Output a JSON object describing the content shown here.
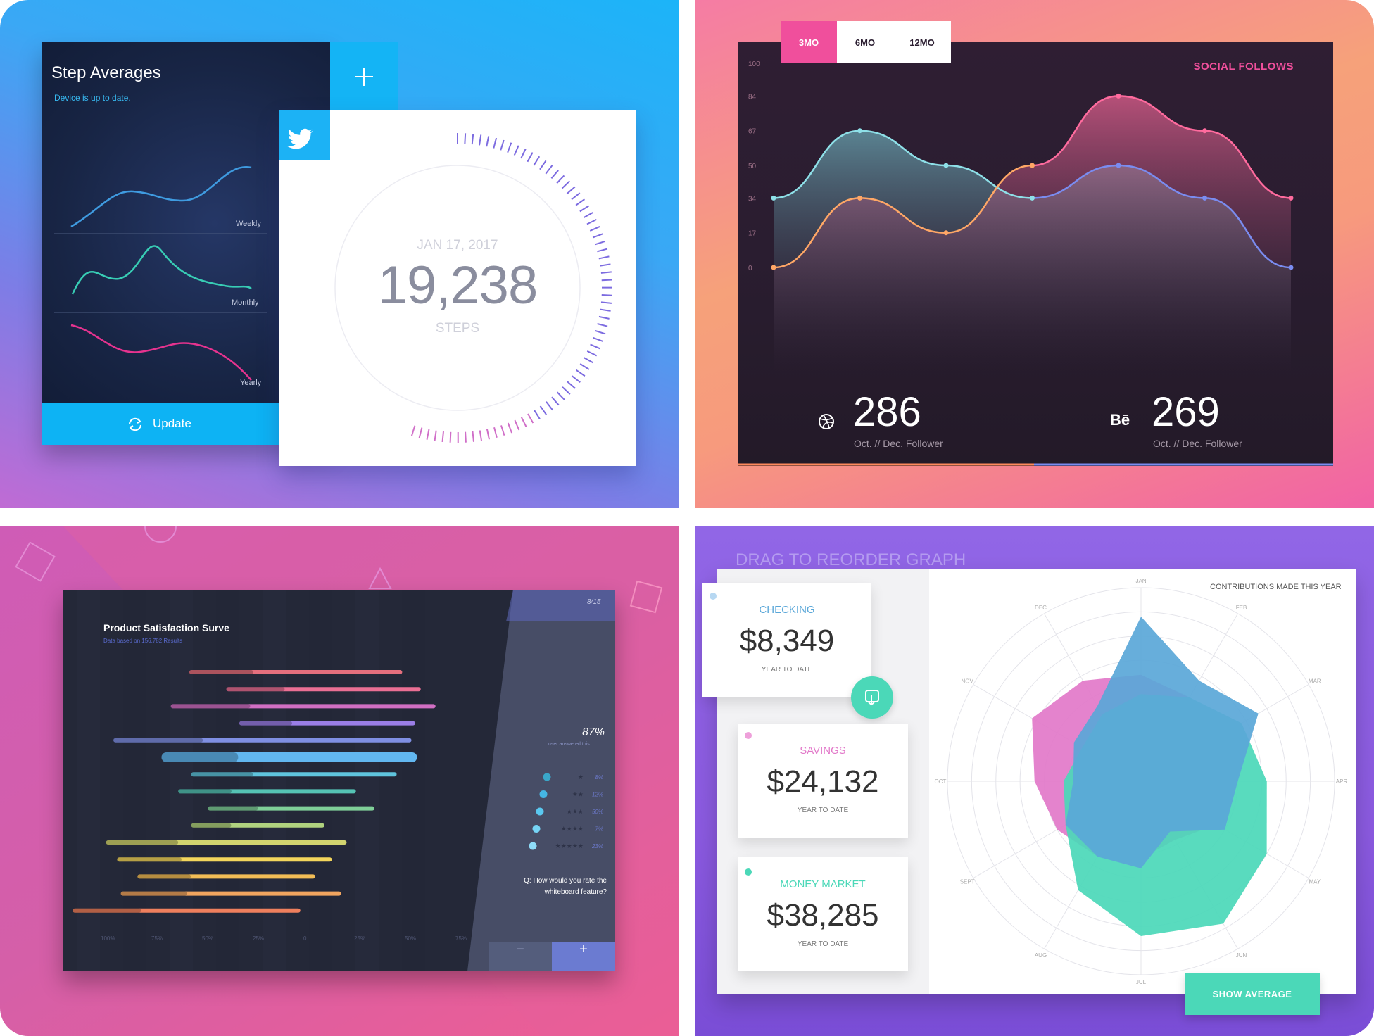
{
  "colors": {
    "blue": "#0db3f4",
    "pink": "#f04f9c",
    "teal": "#4bd8b8",
    "purple": "#8b5ae0"
  },
  "step_card": {
    "title": "Step Averages",
    "subtitle": "Device is up to date.",
    "add_icon": "plus-icon",
    "labels": [
      "Weekly",
      "Monthly",
      "Yearly"
    ],
    "update_label": "Update",
    "update_icon": "refresh-icon"
  },
  "steps_card": {
    "icon": "twitter-icon",
    "date": "JAN 17, 2017",
    "value": "19,238",
    "unit": "STEPS"
  },
  "social": {
    "tabs": [
      "3MO",
      "6MO",
      "12MO"
    ],
    "active_tab": "3MO",
    "title": "SOCIAL FOLLOWS",
    "stat1_icon": "dribbble-icon",
    "stat1_value": "286",
    "stat1_label": "Oct. // Dec. Follower",
    "stat2_icon": "behance-icon",
    "stat2_icon_text": "Bē",
    "stat2_value": "269",
    "stat2_label": "Oct. // Dec. Follower"
  },
  "survey": {
    "title": "Product Satisfaction Surve",
    "subtitle": "Data based on 156,782 Results",
    "page": "8/15",
    "percent": "87%",
    "percent_note": "user answered this",
    "ratings": [
      "8%",
      "12%",
      "50%",
      "7%",
      "23%"
    ],
    "question": "Q: How would you rate the whiteboard feature?",
    "minus": "−",
    "plus": "+"
  },
  "finance": {
    "heading": "DRAG TO REORDER GRAPH",
    "chart_title": "CONTRIBUTIONS MADE THIS YEAR",
    "cards": [
      {
        "label": "CHECKING",
        "value": "$8,349",
        "sub": "YEAR TO DATE",
        "color": "#5aa7d8"
      },
      {
        "label": "SAVINGS",
        "value": "$24,132",
        "sub": "YEAR TO DATE",
        "color": "#e278c9"
      },
      {
        "label": "MONEY MARKET",
        "value": "$38,285",
        "sub": "YEAR TO DATE",
        "color": "#4bd8b8"
      }
    ],
    "drag_icon": "touch-icon",
    "show_average": "SHOW AVERAGE"
  },
  "chart_data": [
    {
      "type": "line",
      "title": "",
      "series": [
        {
          "name": "Weekly",
          "values": [
            2,
            4,
            5,
            3.5,
            6,
            8
          ]
        },
        {
          "name": "Monthly",
          "values": [
            2,
            5,
            3,
            7,
            4,
            3
          ]
        },
        {
          "name": "Yearly",
          "values": [
            7,
            6,
            4,
            5,
            3,
            1
          ]
        }
      ]
    },
    {
      "type": "area",
      "title": "SOCIAL FOLLOWS",
      "yticks": [
        0,
        17,
        34,
        50,
        67,
        84,
        100
      ],
      "ylim": [
        0,
        100
      ],
      "series": [
        {
          "name": "Dribbble",
          "values": [
            34,
            67,
            50,
            34,
            50,
            34,
            0
          ]
        },
        {
          "name": "Behance",
          "values": [
            0,
            34,
            17,
            50,
            84,
            67,
            34
          ]
        }
      ]
    },
    {
      "type": "bar",
      "title": "Product Satisfaction Surve",
      "axis_labels": [
        "100%",
        "75%",
        "50%",
        "25%",
        "0",
        "25%",
        "50%",
        "75%"
      ],
      "bars": [
        {
          "start": -0.35,
          "end": 0.8,
          "color": "#e46f7d"
        },
        {
          "start": -0.15,
          "end": 0.9,
          "color": "#ea6f94"
        },
        {
          "start": -0.45,
          "end": 0.98,
          "color": "#d16fc3"
        },
        {
          "start": -0.08,
          "end": 0.87,
          "color": "#9a7ee6"
        },
        {
          "start": -0.76,
          "end": 0.85,
          "color": "#7f8fe3"
        },
        {
          "start": -0.5,
          "end": 0.88,
          "color": "#62b7f0"
        },
        {
          "start": -0.34,
          "end": 0.77,
          "color": "#5fc4dd"
        },
        {
          "start": -0.41,
          "end": 0.55,
          "color": "#55c3b4"
        },
        {
          "start": -0.25,
          "end": 0.65,
          "color": "#7fcf98"
        },
        {
          "start": -0.34,
          "end": 0.38,
          "color": "#b0d27e"
        },
        {
          "start": -0.8,
          "end": 0.5,
          "color": "#d2d46f"
        },
        {
          "start": -0.74,
          "end": 0.42,
          "color": "#f3d65c"
        },
        {
          "start": -0.63,
          "end": 0.33,
          "color": "#f2bd56"
        },
        {
          "start": -0.72,
          "end": 0.47,
          "color": "#f1a55f"
        },
        {
          "start": -0.98,
          "end": 0.25,
          "color": "#ee7f5d"
        }
      ]
    },
    {
      "type": "radar",
      "title": "CONTRIBUTIONS MADE THIS YEAR",
      "categories": [
        "JAN",
        "FEB",
        "MAR",
        "APR",
        "MAY",
        "JUN",
        "JUL",
        "AUG",
        "SEPT",
        "OCT",
        "NOV",
        "DEC"
      ],
      "series": [
        {
          "name": "SAVINGS",
          "values": [
            0.55,
            0.5,
            0.55,
            0.5,
            0.45,
            0.35,
            0.4,
            0.45,
            0.5,
            0.55,
            0.65,
            0.6
          ],
          "color": "#e278c9"
        },
        {
          "name": "MONEY MARKET",
          "values": [
            0.45,
            0.5,
            0.6,
            0.65,
            0.75,
            0.85,
            0.8,
            0.65,
            0.45,
            0.4,
            0.35,
            0.4
          ],
          "color": "#4bd8b8"
        },
        {
          "name": "CHECKING",
          "values": [
            0.85,
            0.6,
            0.7,
            0.5,
            0.5,
            0.3,
            0.45,
            0.45,
            0.45,
            0.35,
            0.4,
            0.45
          ],
          "color": "#5aa7d8"
        }
      ]
    }
  ]
}
